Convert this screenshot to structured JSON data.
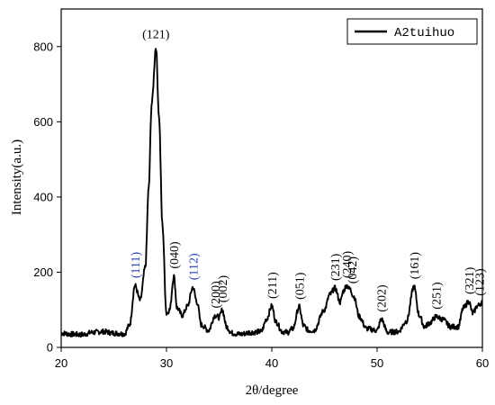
{
  "chart_data": {
    "type": "line",
    "xlabel": "2θ/degree",
    "ylabel": "Intensity(a.u.)",
    "xlim": [
      20,
      60
    ],
    "ylim": [
      0,
      900
    ],
    "x_ticks": [
      20,
      30,
      40,
      50,
      60
    ],
    "y_ticks": [
      0,
      200,
      400,
      600,
      800
    ],
    "grid": false,
    "legend_position": "top-right",
    "series": [
      {
        "name": "A2tuihuo",
        "color": "#000000",
        "x": [
          20.0,
          21.0,
          22.0,
          23.0,
          24.0,
          25.0,
          26.0,
          26.5,
          27.0,
          27.5,
          28.0,
          28.3,
          28.6,
          29.0,
          29.3,
          29.6,
          30.0,
          30.3,
          30.7,
          31.0,
          31.5,
          32.0,
          32.5,
          32.9,
          33.3,
          34.0,
          34.6,
          35.0,
          35.3,
          35.7,
          36.2,
          37.0,
          38.0,
          39.0,
          39.5,
          40.0,
          40.4,
          41.0,
          41.5,
          42.0,
          42.6,
          43.0,
          43.5,
          44.0,
          45.0,
          45.5,
          46.0,
          46.5,
          46.8,
          47.1,
          47.4,
          47.8,
          48.3,
          49.0,
          50.0,
          50.4,
          51.0,
          52.0,
          52.8,
          53.5,
          54.0,
          54.5,
          55.0,
          55.6,
          56.2,
          57.0,
          57.7,
          58.2,
          58.7,
          59.1,
          59.5,
          60.0
        ],
        "y": [
          38,
          35,
          34,
          40,
          42,
          38,
          36,
          60,
          165,
          125,
          215,
          420,
          650,
          798,
          610,
          330,
          90,
          100,
          190,
          105,
          85,
          110,
          160,
          120,
          60,
          45,
          85,
          80,
          100,
          55,
          38,
          35,
          40,
          42,
          75,
          110,
          68,
          42,
          40,
          50,
          108,
          58,
          45,
          45,
          100,
          140,
          158,
          120,
          150,
          165,
          155,
          135,
          82,
          50,
          45,
          75,
          40,
          42,
          70,
          162,
          85,
          55,
          65,
          82,
          75,
          55,
          55,
          105,
          122,
          90,
          110,
          120
        ]
      }
    ],
    "annotations": [
      {
        "text": "(121)",
        "x": 29.0,
        "y": 798,
        "rotation": 0,
        "color": "#000000"
      },
      {
        "text": "(111)",
        "x": 27.0,
        "y": 165,
        "rotation": -90,
        "color": "#1f3fbf"
      },
      {
        "text": "(040)",
        "x": 30.7,
        "y": 190,
        "rotation": -90,
        "color": "#000000"
      },
      {
        "text": "(112)",
        "x": 32.5,
        "y": 160,
        "rotation": -90,
        "color": "#1f3fbf"
      },
      {
        "text": "(200)",
        "x": 34.6,
        "y": 85,
        "rotation": -90,
        "color": "#000000"
      },
      {
        "text": "(002)",
        "x": 35.3,
        "y": 100,
        "rotation": -90,
        "color": "#000000"
      },
      {
        "text": "(211)",
        "x": 40.0,
        "y": 110,
        "rotation": -90,
        "color": "#000000"
      },
      {
        "text": "(051)",
        "x": 42.6,
        "y": 108,
        "rotation": -90,
        "color": "#000000"
      },
      {
        "text": "(231)",
        "x": 46.0,
        "y": 158,
        "rotation": -90,
        "color": "#000000"
      },
      {
        "text": "(240)",
        "x": 47.1,
        "y": 165,
        "rotation": -90,
        "color": "#000000"
      },
      {
        "text": "(042)",
        "x": 47.6,
        "y": 150,
        "rotation": -90,
        "color": "#000000"
      },
      {
        "text": "(202)",
        "x": 50.4,
        "y": 75,
        "rotation": -90,
        "color": "#000000"
      },
      {
        "text": "(161)",
        "x": 53.5,
        "y": 162,
        "rotation": -90,
        "color": "#000000"
      },
      {
        "text": "(251)",
        "x": 55.6,
        "y": 82,
        "rotation": -90,
        "color": "#000000"
      },
      {
        "text": "(321)",
        "x": 58.7,
        "y": 122,
        "rotation": -90,
        "color": "#000000"
      },
      {
        "text": "(123)",
        "x": 59.7,
        "y": 118,
        "rotation": -90,
        "color": "#000000"
      }
    ]
  }
}
